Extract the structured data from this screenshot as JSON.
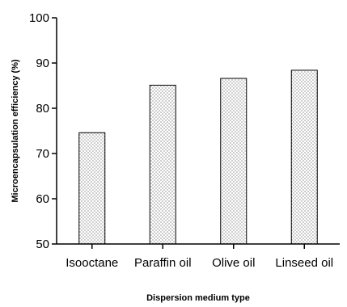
{
  "chart_data": {
    "type": "bar",
    "categories": [
      "Isooctane",
      "Paraffin oil",
      "Olive oil",
      "Linseed oil"
    ],
    "values": [
      74.6,
      85.1,
      86.6,
      88.4
    ],
    "title": "",
    "xlabel": "Dispersion medium type",
    "ylabel": "Microencapsulation efficiency (%)",
    "ylim": [
      50,
      100
    ],
    "yticks": [
      50,
      60,
      70,
      80,
      90,
      100
    ],
    "bar_fill": "dotted",
    "bar_edge_color": "#000000",
    "grid": false,
    "legend": "none"
  }
}
